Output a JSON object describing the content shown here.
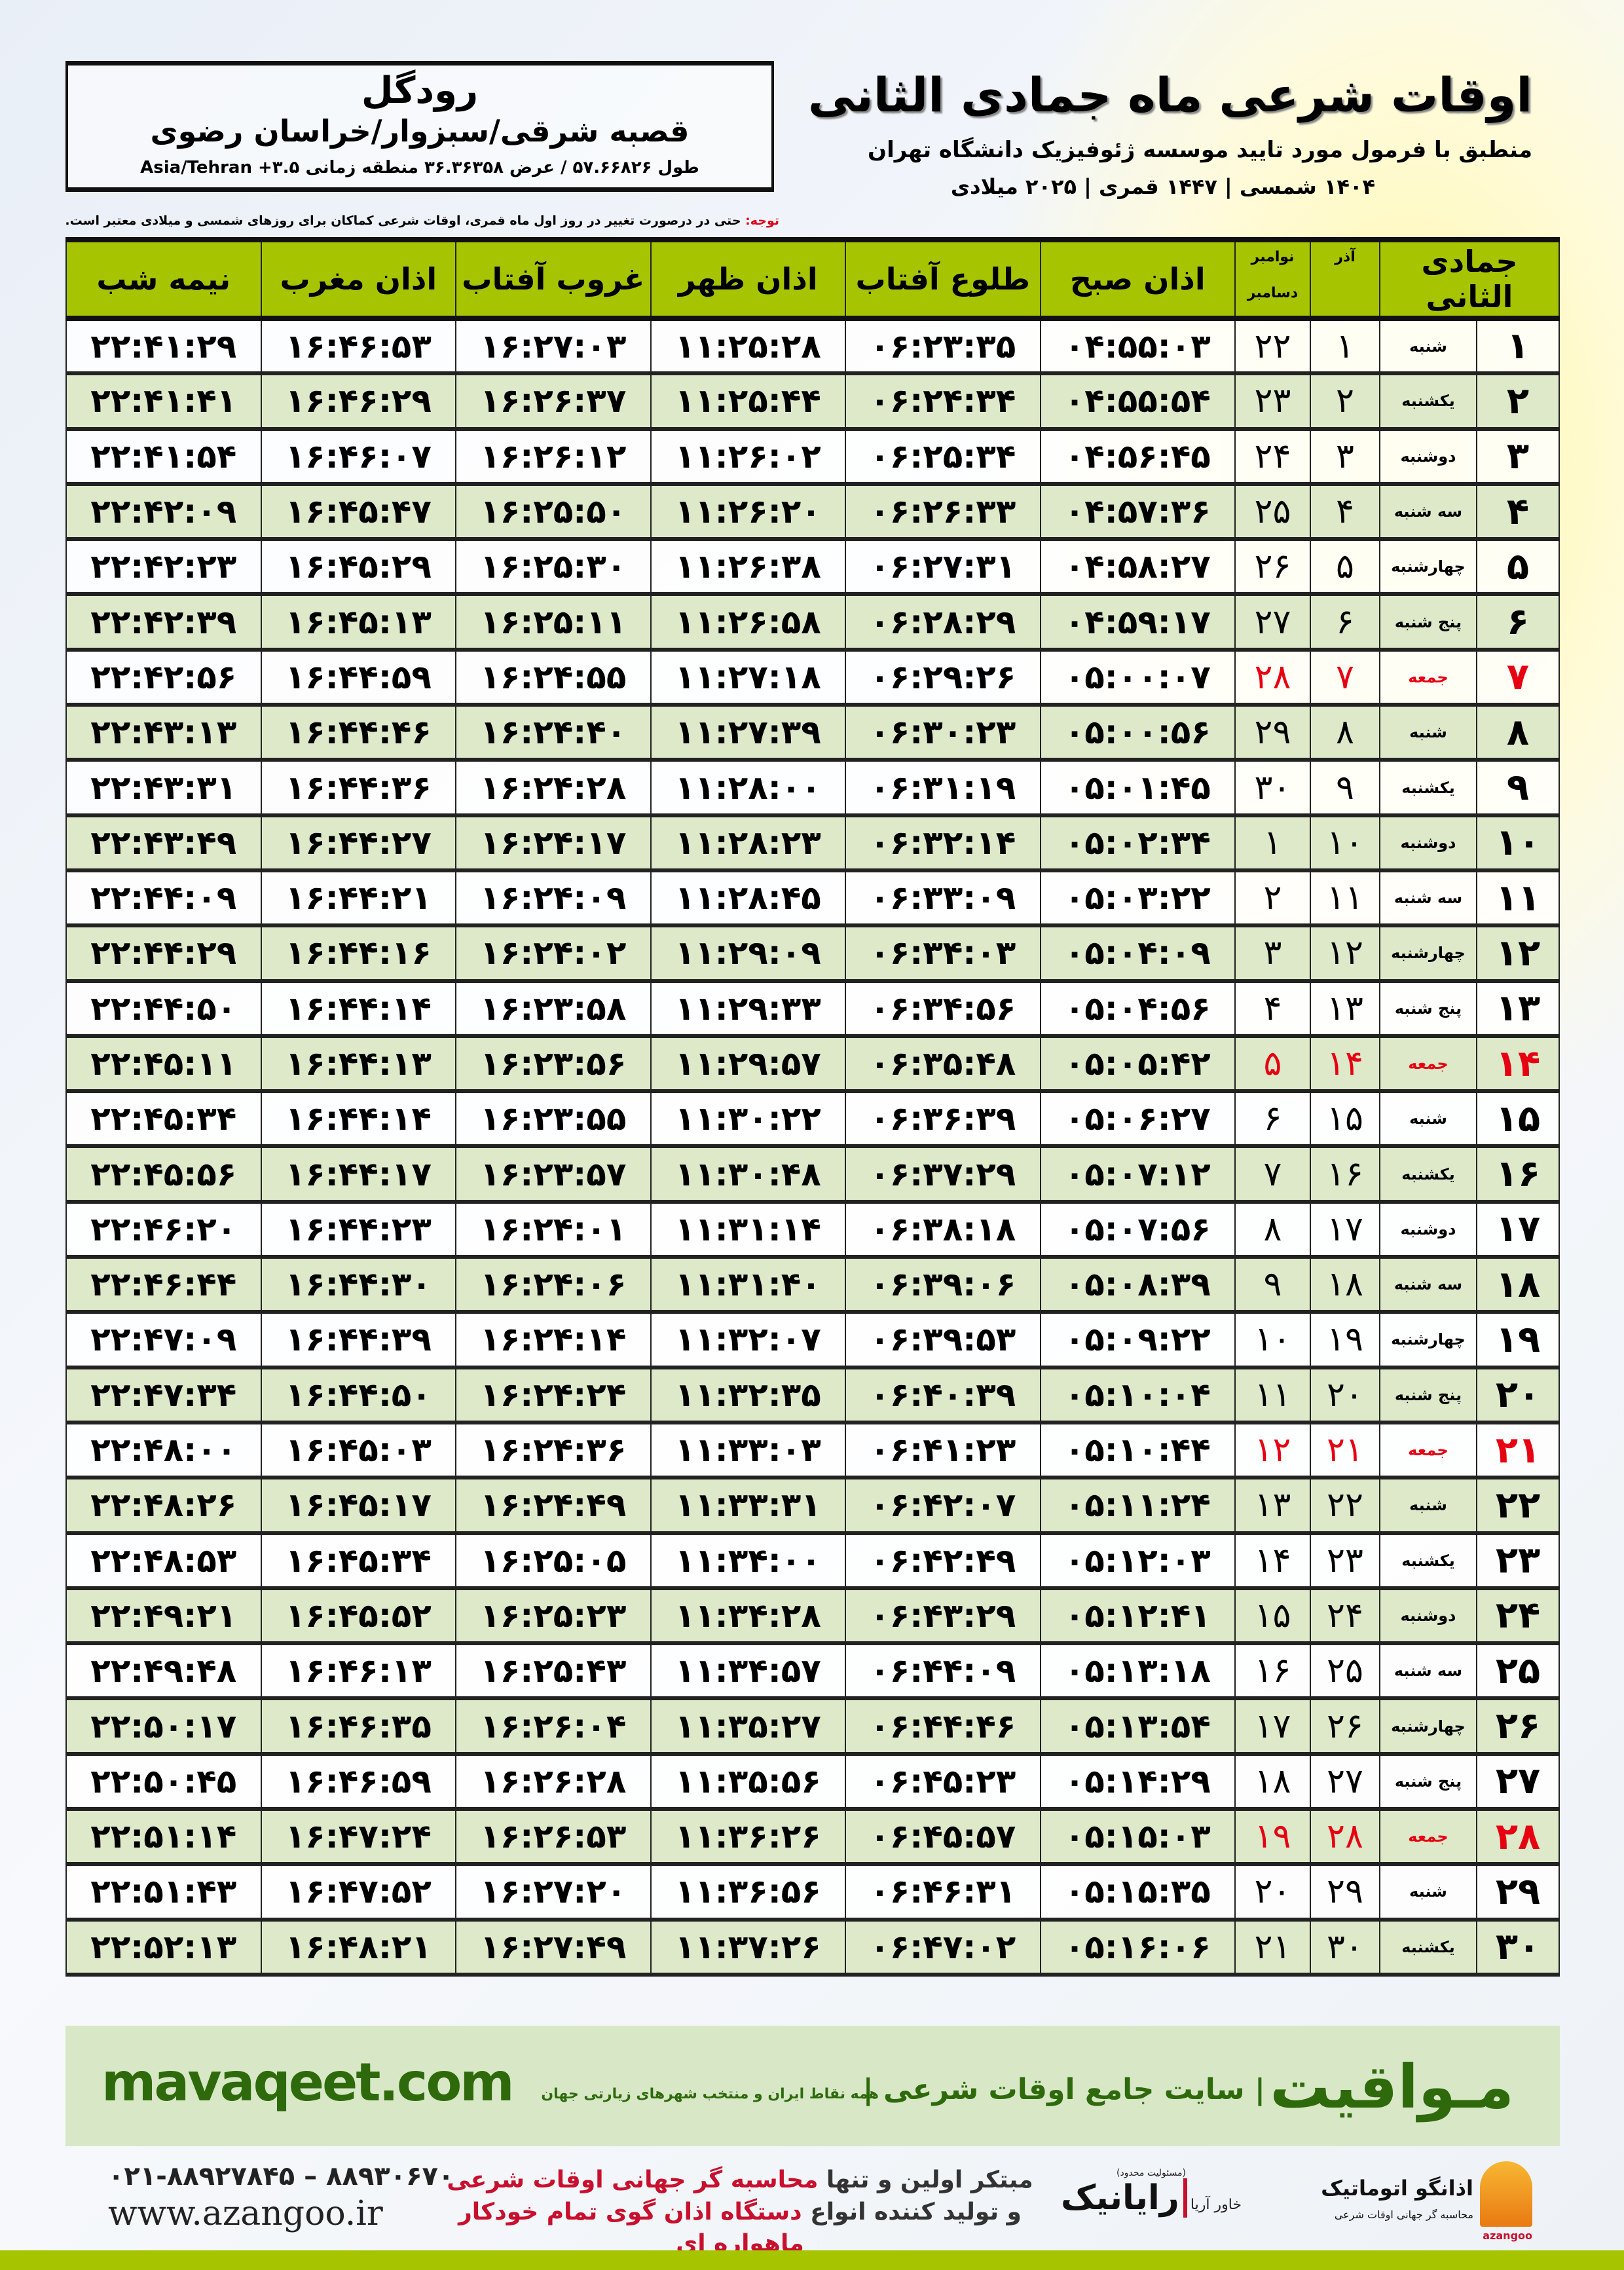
{
  "header": {
    "title": "اوقات شرعی ماه جمادی الثانی",
    "subtitle": "منطبق با فرمول مورد تایید موسسه ژئوفیزیک دانشگاه تهران",
    "years": "۱۴۰۴ شمسی | ۱۴۴۷ قمری | ۲۰۲۵ میلادی"
  },
  "location": {
    "city": "رودگل",
    "region": "قصبه شرقی/سبزوار/خراسان رضوی",
    "coords": "طول ۵۷.۶۶۸۲۶ / عرض ۳۶.۳۶۳۵۸ منطقه زمانی ۳.۵+ Asia/Tehran"
  },
  "note": {
    "label": "توجه:",
    "text": " حتی در درصورت تغییر در روز اول ماه قمری، اوقات شرعی کماکان برای روزهای شمسی و میلادی معتبر است."
  },
  "table": {
    "headers": {
      "hijri": "جمادی الثانی",
      "shamsi": "آذر",
      "greg_top": "نوامبر",
      "greg_bottom": "دسامبر",
      "fajr": "اذان صبح",
      "sunrise": "طلوع آفتاب",
      "dhuhr": "اذان ظهر",
      "sunset": "غروب آفتاب",
      "maghrib": "اذان مغرب",
      "midnight": "نیمه شب"
    },
    "holiday_color": "#e60012",
    "header_color": "#a6c400",
    "alt_row_color": "#dde9c9",
    "rows": [
      {
        "day": "۱",
        "weekday": "شنبه",
        "shamsi": "۱",
        "greg": "۲۲",
        "fajr": "۰۴:۵۵:۰۳",
        "sunrise": "۰۶:۲۳:۳۵",
        "dhuhr": "۱۱:۲۵:۲۸",
        "sunset": "۱۶:۲۷:۰۳",
        "maghrib": "۱۶:۴۶:۵۳",
        "midnight": "۲۲:۴۱:۲۹",
        "holiday": false
      },
      {
        "day": "۲",
        "weekday": "یکشنبه",
        "shamsi": "۲",
        "greg": "۲۳",
        "fajr": "۰۴:۵۵:۵۴",
        "sunrise": "۰۶:۲۴:۳۴",
        "dhuhr": "۱۱:۲۵:۴۴",
        "sunset": "۱۶:۲۶:۳۷",
        "maghrib": "۱۶:۴۶:۲۹",
        "midnight": "۲۲:۴۱:۴۱",
        "holiday": false
      },
      {
        "day": "۳",
        "weekday": "دوشنبه",
        "shamsi": "۳",
        "greg": "۲۴",
        "fajr": "۰۴:۵۶:۴۵",
        "sunrise": "۰۶:۲۵:۳۴",
        "dhuhr": "۱۱:۲۶:۰۲",
        "sunset": "۱۶:۲۶:۱۲",
        "maghrib": "۱۶:۴۶:۰۷",
        "midnight": "۲۲:۴۱:۵۴",
        "holiday": false
      },
      {
        "day": "۴",
        "weekday": "سه شنبه",
        "shamsi": "۴",
        "greg": "۲۵",
        "fajr": "۰۴:۵۷:۳۶",
        "sunrise": "۰۶:۲۶:۳۳",
        "dhuhr": "۱۱:۲۶:۲۰",
        "sunset": "۱۶:۲۵:۵۰",
        "maghrib": "۱۶:۴۵:۴۷",
        "midnight": "۲۲:۴۲:۰۹",
        "holiday": false
      },
      {
        "day": "۵",
        "weekday": "چهارشنبه",
        "shamsi": "۵",
        "greg": "۲۶",
        "fajr": "۰۴:۵۸:۲۷",
        "sunrise": "۰۶:۲۷:۳۱",
        "dhuhr": "۱۱:۲۶:۳۸",
        "sunset": "۱۶:۲۵:۳۰",
        "maghrib": "۱۶:۴۵:۲۹",
        "midnight": "۲۲:۴۲:۲۳",
        "holiday": false
      },
      {
        "day": "۶",
        "weekday": "پنج شنبه",
        "shamsi": "۶",
        "greg": "۲۷",
        "fajr": "۰۴:۵۹:۱۷",
        "sunrise": "۰۶:۲۸:۲۹",
        "dhuhr": "۱۱:۲۶:۵۸",
        "sunset": "۱۶:۲۵:۱۱",
        "maghrib": "۱۶:۴۵:۱۳",
        "midnight": "۲۲:۴۲:۳۹",
        "holiday": false
      },
      {
        "day": "۷",
        "weekday": "جمعه",
        "shamsi": "۷",
        "greg": "۲۸",
        "fajr": "۰۵:۰۰:۰۷",
        "sunrise": "۰۶:۲۹:۲۶",
        "dhuhr": "۱۱:۲۷:۱۸",
        "sunset": "۱۶:۲۴:۵۵",
        "maghrib": "۱۶:۴۴:۵۹",
        "midnight": "۲۲:۴۲:۵۶",
        "holiday": true
      },
      {
        "day": "۸",
        "weekday": "شنبه",
        "shamsi": "۸",
        "greg": "۲۹",
        "fajr": "۰۵:۰۰:۵۶",
        "sunrise": "۰۶:۳۰:۲۳",
        "dhuhr": "۱۱:۲۷:۳۹",
        "sunset": "۱۶:۲۴:۴۰",
        "maghrib": "۱۶:۴۴:۴۶",
        "midnight": "۲۲:۴۳:۱۳",
        "holiday": false
      },
      {
        "day": "۹",
        "weekday": "یکشنبه",
        "shamsi": "۹",
        "greg": "۳۰",
        "fajr": "۰۵:۰۱:۴۵",
        "sunrise": "۰۶:۳۱:۱۹",
        "dhuhr": "۱۱:۲۸:۰۰",
        "sunset": "۱۶:۲۴:۲۸",
        "maghrib": "۱۶:۴۴:۳۶",
        "midnight": "۲۲:۴۳:۳۱",
        "holiday": false
      },
      {
        "day": "۱۰",
        "weekday": "دوشنبه",
        "shamsi": "۱۰",
        "greg": "۱",
        "fajr": "۰۵:۰۲:۳۴",
        "sunrise": "۰۶:۳۲:۱۴",
        "dhuhr": "۱۱:۲۸:۲۳",
        "sunset": "۱۶:۲۴:۱۷",
        "maghrib": "۱۶:۴۴:۲۷",
        "midnight": "۲۲:۴۳:۴۹",
        "holiday": false
      },
      {
        "day": "۱۱",
        "weekday": "سه شنبه",
        "shamsi": "۱۱",
        "greg": "۲",
        "fajr": "۰۵:۰۳:۲۲",
        "sunrise": "۰۶:۳۳:۰۹",
        "dhuhr": "۱۱:۲۸:۴۵",
        "sunset": "۱۶:۲۴:۰۹",
        "maghrib": "۱۶:۴۴:۲۱",
        "midnight": "۲۲:۴۴:۰۹",
        "holiday": false
      },
      {
        "day": "۱۲",
        "weekday": "چهارشنبه",
        "shamsi": "۱۲",
        "greg": "۳",
        "fajr": "۰۵:۰۴:۰۹",
        "sunrise": "۰۶:۳۴:۰۳",
        "dhuhr": "۱۱:۲۹:۰۹",
        "sunset": "۱۶:۲۴:۰۲",
        "maghrib": "۱۶:۴۴:۱۶",
        "midnight": "۲۲:۴۴:۲۹",
        "holiday": false
      },
      {
        "day": "۱۳",
        "weekday": "پنج شنبه",
        "shamsi": "۱۳",
        "greg": "۴",
        "fajr": "۰۵:۰۴:۵۶",
        "sunrise": "۰۶:۳۴:۵۶",
        "dhuhr": "۱۱:۲۹:۳۳",
        "sunset": "۱۶:۲۳:۵۸",
        "maghrib": "۱۶:۴۴:۱۴",
        "midnight": "۲۲:۴۴:۵۰",
        "holiday": false
      },
      {
        "day": "۱۴",
        "weekday": "جمعه",
        "shamsi": "۱۴",
        "greg": "۵",
        "fajr": "۰۵:۰۵:۴۲",
        "sunrise": "۰۶:۳۵:۴۸",
        "dhuhr": "۱۱:۲۹:۵۷",
        "sunset": "۱۶:۲۳:۵۶",
        "maghrib": "۱۶:۴۴:۱۳",
        "midnight": "۲۲:۴۵:۱۱",
        "holiday": true
      },
      {
        "day": "۱۵",
        "weekday": "شنبه",
        "shamsi": "۱۵",
        "greg": "۶",
        "fajr": "۰۵:۰۶:۲۷",
        "sunrise": "۰۶:۳۶:۳۹",
        "dhuhr": "۱۱:۳۰:۲۲",
        "sunset": "۱۶:۲۳:۵۵",
        "maghrib": "۱۶:۴۴:۱۴",
        "midnight": "۲۲:۴۵:۳۴",
        "holiday": false
      },
      {
        "day": "۱۶",
        "weekday": "یکشنبه",
        "shamsi": "۱۶",
        "greg": "۷",
        "fajr": "۰۵:۰۷:۱۲",
        "sunrise": "۰۶:۳۷:۲۹",
        "dhuhr": "۱۱:۳۰:۴۸",
        "sunset": "۱۶:۲۳:۵۷",
        "maghrib": "۱۶:۴۴:۱۷",
        "midnight": "۲۲:۴۵:۵۶",
        "holiday": false
      },
      {
        "day": "۱۷",
        "weekday": "دوشنبه",
        "shamsi": "۱۷",
        "greg": "۸",
        "fajr": "۰۵:۰۷:۵۶",
        "sunrise": "۰۶:۳۸:۱۸",
        "dhuhr": "۱۱:۳۱:۱۴",
        "sunset": "۱۶:۲۴:۰۱",
        "maghrib": "۱۶:۴۴:۲۳",
        "midnight": "۲۲:۴۶:۲۰",
        "holiday": false
      },
      {
        "day": "۱۸",
        "weekday": "سه شنبه",
        "shamsi": "۱۸",
        "greg": "۹",
        "fajr": "۰۵:۰۸:۳۹",
        "sunrise": "۰۶:۳۹:۰۶",
        "dhuhr": "۱۱:۳۱:۴۰",
        "sunset": "۱۶:۲۴:۰۶",
        "maghrib": "۱۶:۴۴:۳۰",
        "midnight": "۲۲:۴۶:۴۴",
        "holiday": false
      },
      {
        "day": "۱۹",
        "weekday": "چهارشنبه",
        "shamsi": "۱۹",
        "greg": "۱۰",
        "fajr": "۰۵:۰۹:۲۲",
        "sunrise": "۰۶:۳۹:۵۳",
        "dhuhr": "۱۱:۳۲:۰۷",
        "sunset": "۱۶:۲۴:۱۴",
        "maghrib": "۱۶:۴۴:۳۹",
        "midnight": "۲۲:۴۷:۰۹",
        "holiday": false
      },
      {
        "day": "۲۰",
        "weekday": "پنج شنبه",
        "shamsi": "۲۰",
        "greg": "۱۱",
        "fajr": "۰۵:۱۰:۰۴",
        "sunrise": "۰۶:۴۰:۳۹",
        "dhuhr": "۱۱:۳۲:۳۵",
        "sunset": "۱۶:۲۴:۲۴",
        "maghrib": "۱۶:۴۴:۵۰",
        "midnight": "۲۲:۴۷:۳۴",
        "holiday": false
      },
      {
        "day": "۲۱",
        "weekday": "جمعه",
        "shamsi": "۲۱",
        "greg": "۱۲",
        "fajr": "۰۵:۱۰:۴۴",
        "sunrise": "۰۶:۴۱:۲۳",
        "dhuhr": "۱۱:۳۳:۰۳",
        "sunset": "۱۶:۲۴:۳۶",
        "maghrib": "۱۶:۴۵:۰۳",
        "midnight": "۲۲:۴۸:۰۰",
        "holiday": true
      },
      {
        "day": "۲۲",
        "weekday": "شنبه",
        "shamsi": "۲۲",
        "greg": "۱۳",
        "fajr": "۰۵:۱۱:۲۴",
        "sunrise": "۰۶:۴۲:۰۷",
        "dhuhr": "۱۱:۳۳:۳۱",
        "sunset": "۱۶:۲۴:۴۹",
        "maghrib": "۱۶:۴۵:۱۷",
        "midnight": "۲۲:۴۸:۲۶",
        "holiday": false
      },
      {
        "day": "۲۳",
        "weekday": "یکشنبه",
        "shamsi": "۲۳",
        "greg": "۱۴",
        "fajr": "۰۵:۱۲:۰۳",
        "sunrise": "۰۶:۴۲:۴۹",
        "dhuhr": "۱۱:۳۴:۰۰",
        "sunset": "۱۶:۲۵:۰۵",
        "maghrib": "۱۶:۴۵:۳۴",
        "midnight": "۲۲:۴۸:۵۳",
        "holiday": false
      },
      {
        "day": "۲۴",
        "weekday": "دوشنبه",
        "shamsi": "۲۴",
        "greg": "۱۵",
        "fajr": "۰۵:۱۲:۴۱",
        "sunrise": "۰۶:۴۳:۲۹",
        "dhuhr": "۱۱:۳۴:۲۸",
        "sunset": "۱۶:۲۵:۲۳",
        "maghrib": "۱۶:۴۵:۵۲",
        "midnight": "۲۲:۴۹:۲۱",
        "holiday": false
      },
      {
        "day": "۲۵",
        "weekday": "سه شنبه",
        "shamsi": "۲۵",
        "greg": "۱۶",
        "fajr": "۰۵:۱۳:۱۸",
        "sunrise": "۰۶:۴۴:۰۹",
        "dhuhr": "۱۱:۳۴:۵۷",
        "sunset": "۱۶:۲۵:۴۳",
        "maghrib": "۱۶:۴۶:۱۳",
        "midnight": "۲۲:۴۹:۴۸",
        "holiday": false
      },
      {
        "day": "۲۶",
        "weekday": "چهارشنبه",
        "shamsi": "۲۶",
        "greg": "۱۷",
        "fajr": "۰۵:۱۳:۵۴",
        "sunrise": "۰۶:۴۴:۴۶",
        "dhuhr": "۱۱:۳۵:۲۷",
        "sunset": "۱۶:۲۶:۰۴",
        "maghrib": "۱۶:۴۶:۳۵",
        "midnight": "۲۲:۵۰:۱۷",
        "holiday": false
      },
      {
        "day": "۲۷",
        "weekday": "پنج شنبه",
        "shamsi": "۲۷",
        "greg": "۱۸",
        "fajr": "۰۵:۱۴:۲۹",
        "sunrise": "۰۶:۴۵:۲۳",
        "dhuhr": "۱۱:۳۵:۵۶",
        "sunset": "۱۶:۲۶:۲۸",
        "maghrib": "۱۶:۴۶:۵۹",
        "midnight": "۲۲:۵۰:۴۵",
        "holiday": false
      },
      {
        "day": "۲۸",
        "weekday": "جمعه",
        "shamsi": "۲۸",
        "greg": "۱۹",
        "fajr": "۰۵:۱۵:۰۳",
        "sunrise": "۰۶:۴۵:۵۷",
        "dhuhr": "۱۱:۳۶:۲۶",
        "sunset": "۱۶:۲۶:۵۳",
        "maghrib": "۱۶:۴۷:۲۴",
        "midnight": "۲۲:۵۱:۱۴",
        "holiday": true
      },
      {
        "day": "۲۹",
        "weekday": "شنبه",
        "shamsi": "۲۹",
        "greg": "۲۰",
        "fajr": "۰۵:۱۵:۳۵",
        "sunrise": "۰۶:۴۶:۳۱",
        "dhuhr": "۱۱:۳۶:۵۶",
        "sunset": "۱۶:۲۷:۲۰",
        "maghrib": "۱۶:۴۷:۵۲",
        "midnight": "۲۲:۵۱:۴۳",
        "holiday": false
      },
      {
        "day": "۳۰",
        "weekday": "یکشنبه",
        "shamsi": "۳۰",
        "greg": "۲۱",
        "fajr": "۰۵:۱۶:۰۶",
        "sunrise": "۰۶:۴۷:۰۲",
        "dhuhr": "۱۱:۳۷:۲۶",
        "sunset": "۱۶:۲۷:۴۹",
        "maghrib": "۱۶:۴۸:۲۱",
        "midnight": "۲۲:۵۲:۱۳",
        "holiday": false
      }
    ]
  },
  "footer": {
    "brand": "مـواقیت",
    "slogan": "| سایت جامع اوقات شرعی |",
    "slogan2": "همه نقاط ایران و منتخب شهرهای زیارتی جهان",
    "site": "mavaqeet.com",
    "brand_color": "#2e6a0c",
    "phone": "۰۲۱-۸۸۹۲۷۸۴۵ – ۸۸۹۳۰۶۷۰",
    "www": "www.azangoo.ir",
    "promo1_a": "مبتکر اولین و تنها ",
    "promo1_b": "محاسبه گر جهانی اوقات شرعی",
    "promo2_a": "و تولید کننده انواع ",
    "promo2_b": "دستگاه اذان گوی تمام خودکار ماهواره ای",
    "logo_rayanik": "رایانیک",
    "logo_rayanik_small": "(مسئولیت محدود)",
    "logo_rayanik_side": "خاور آریا",
    "logo_azangoo": "اذانگو اتوماتیک",
    "logo_azangoo_sub": "محاسبه گر جهانی اوقات شرعی",
    "logo_azangoo_en": "azangoo"
  }
}
